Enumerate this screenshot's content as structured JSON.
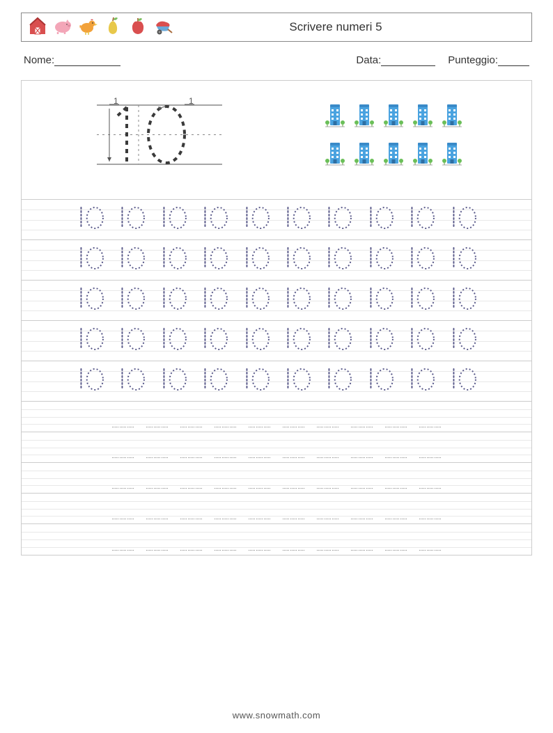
{
  "header": {
    "title": "Scrivere numeri 5",
    "icons": [
      "barn",
      "pig",
      "chicken",
      "pear",
      "apple",
      "wheelbarrow"
    ]
  },
  "info": {
    "name_label": "Nome:",
    "date_label": "Data:",
    "score_label": "Punteggio:",
    "name_blank_width": 95,
    "date_blank_width": 78,
    "score_blank_width": 45
  },
  "worksheet": {
    "demo_number": "10",
    "objects": {
      "icon": "building",
      "rows": 2,
      "per_row": 5,
      "color_primary": "#4aa3e0",
      "color_accent": "#6bbf59"
    },
    "trace_rows": {
      "count": 5,
      "numbers_per_row": 10,
      "number": "10",
      "dot_color": "#5a5a8a",
      "number_height": 36
    },
    "blank_rows": {
      "count": 5,
      "placeholders_per_row": 10
    },
    "guideline_color": "#e8e8e8",
    "border_color": "#cccccc"
  },
  "stroke_demo": {
    "width": 170,
    "height": 100,
    "baseline_color": "#888888",
    "midline_color": "#888888",
    "dash_color": "#3a3a3a",
    "label_color": "#555555",
    "arrow_color": "#555555"
  },
  "footer": {
    "text": "www.snowmath.com"
  },
  "colors": {
    "text": "#333333",
    "icon_red": "#d94f4f",
    "icon_pink": "#f3a6b8",
    "icon_orange": "#f2a23a",
    "icon_yellow": "#e8c84a",
    "icon_green": "#7bbf5e",
    "icon_brown": "#a86b3c"
  }
}
